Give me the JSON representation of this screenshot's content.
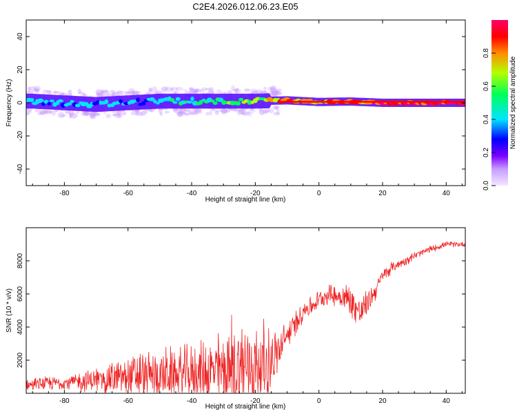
{
  "title": "C2E4.2026.012.06.23.E05",
  "chart_data": [
    {
      "type": "heatmap",
      "xlabel": "Height of straight line (km)",
      "ylabel": "Frequency (Hz)",
      "xlim": [
        -92,
        46
      ],
      "ylim": [
        -50,
        50
      ],
      "x_ticks": [
        -80,
        -60,
        -40,
        -20,
        0,
        20,
        40
      ],
      "x_tick_labels": [
        "-80",
        "-60",
        "-40",
        "-20",
        "0",
        "20",
        "40"
      ],
      "y_ticks": [
        -40,
        -20,
        0,
        20,
        40
      ],
      "y_tick_labels": [
        "-40",
        "-20",
        "0",
        "20",
        "40"
      ],
      "colorbar": {
        "label": "Normalized spectral amplitude",
        "range": [
          0,
          1
        ],
        "ticks": [
          0.0,
          0.2,
          0.4,
          0.6,
          0.8
        ],
        "tick_labels": [
          "0.0",
          "0.2",
          "0.4",
          "0.6",
          "0.8"
        ],
        "colors": [
          "#f3e8ff",
          "#7a00ff",
          "#0000ff",
          "#00e5ff",
          "#00ff5a",
          "#b4ff00",
          "#ff8c00",
          "#ff0000",
          "#ff0066"
        ]
      },
      "ridge": [
        {
          "x": -90,
          "y": 1,
          "amp": 0.35
        },
        {
          "x": -80,
          "y": 0,
          "amp": 0.4
        },
        {
          "x": -70,
          "y": -1,
          "amp": 0.38
        },
        {
          "x": -60,
          "y": 0,
          "amp": 0.35
        },
        {
          "x": -50,
          "y": 1,
          "amp": 0.4
        },
        {
          "x": -40,
          "y": 1,
          "amp": 0.45
        },
        {
          "x": -30,
          "y": 1,
          "amp": 0.5
        },
        {
          "x": -20,
          "y": 1,
          "amp": 0.6
        },
        {
          "x": -10,
          "y": 1.5,
          "amp": 0.85
        },
        {
          "x": 0,
          "y": 0.5,
          "amp": 0.8
        },
        {
          "x": 10,
          "y": 0.8,
          "amp": 0.85
        },
        {
          "x": 20,
          "y": 0,
          "amp": 0.9
        },
        {
          "x": 30,
          "y": 0,
          "amp": 0.95
        },
        {
          "x": 45,
          "y": 0,
          "amp": 0.95
        }
      ]
    },
    {
      "type": "line",
      "xlabel": "Height of straight line (km)",
      "ylabel": "SNR (10 * v/v)",
      "xlim": [
        -92,
        46
      ],
      "ylim": [
        0,
        10000
      ],
      "x_ticks": [
        -80,
        -60,
        -40,
        -20,
        0,
        20,
        40
      ],
      "x_tick_labels": [
        "-80",
        "-60",
        "-40",
        "-20",
        "0",
        "20",
        "40"
      ],
      "y_ticks": [
        2000,
        4000,
        6000,
        8000
      ],
      "y_tick_labels": [
        "2000",
        "4000",
        "6000",
        "8000"
      ],
      "series": [
        {
          "color": "#ee2222",
          "envelope": {
            "x": [
              -92,
              -85,
              -80,
              -75,
              -70,
              -65,
              -60,
              -55,
              -50,
              -45,
              -40,
              -35,
              -30,
              -27,
              -25,
              -22,
              -20,
              -17,
              -15,
              -12,
              -10,
              -7,
              -5,
              -2,
              0,
              3,
              5,
              8,
              10,
              13,
              15,
              18,
              20,
              23,
              25,
              30,
              35,
              40,
              46
            ],
            "base": [
              500,
              600,
              650,
              700,
              800,
              900,
              1000,
              1050,
              1100,
              1150,
              1200,
              1300,
              1400,
              1450,
              1500,
              1550,
              1600,
              1700,
              2000,
              2700,
              3500,
              4300,
              5000,
              5300,
              5700,
              6000,
              5900,
              5800,
              5600,
              4800,
              5400,
              6300,
              7100,
              7600,
              7800,
              8300,
              8700,
              9000,
              9000
            ],
            "amp": [
              400,
              500,
              500,
              700,
              900,
              1200,
              1500,
              1800,
              1800,
              1900,
              2000,
              2400,
              2800,
              4000,
              4200,
              3500,
              3200,
              3000,
              2200,
              1500,
              1000,
              900,
              800,
              700,
              600,
              700,
              800,
              1000,
              1200,
              1300,
              900,
              700,
              500,
              400,
              350,
              300,
              250,
              200,
              200
            ]
          }
        }
      ]
    }
  ],
  "colors": {
    "line": "#ee2222",
    "axis": "#000000"
  }
}
